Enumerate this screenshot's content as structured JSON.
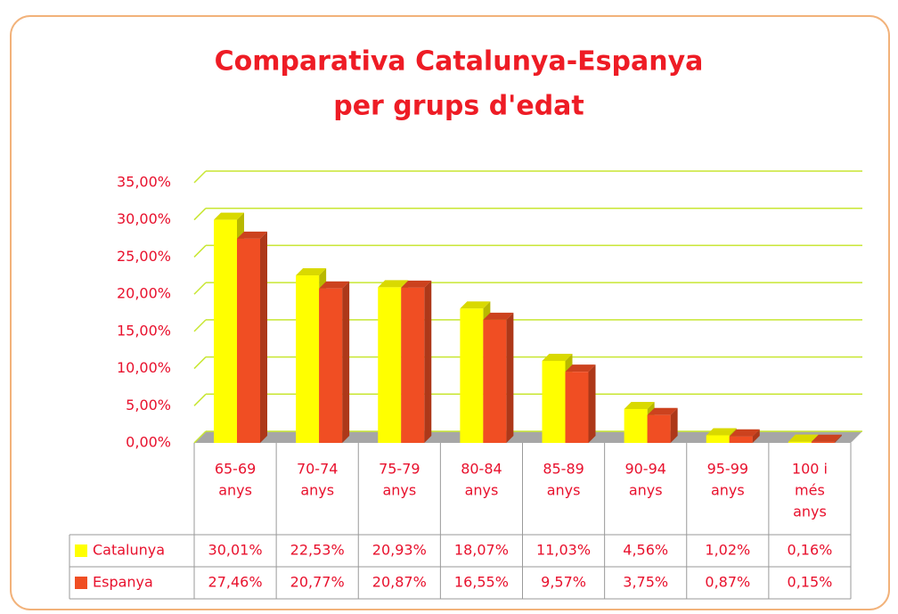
{
  "chart_data": {
    "type": "bar",
    "title": [
      "Comparativa Catalunya-Espanya",
      "per grups d'edat"
    ],
    "categories": [
      [
        "65-69",
        "anys"
      ],
      [
        "70-74",
        "anys"
      ],
      [
        "75-79",
        "anys"
      ],
      [
        "80-84",
        "anys"
      ],
      [
        "85-89",
        "anys"
      ],
      [
        "90-94",
        "anys"
      ],
      [
        "95-99",
        "anys"
      ],
      [
        "100 i",
        "més",
        "anys"
      ]
    ],
    "series": [
      {
        "name": "Catalunya",
        "color": "#ffff00",
        "values": [
          30.01,
          22.53,
          20.93,
          18.07,
          11.03,
          4.56,
          1.02,
          0.16
        ],
        "value_labels": [
          "30,01%",
          "22,53%",
          "20,93%",
          "18,07%",
          "11,03%",
          "4,56%",
          "1,02%",
          "0,16%"
        ]
      },
      {
        "name": "Espanya",
        "color": "#f04e23",
        "values": [
          27.46,
          20.77,
          20.87,
          16.55,
          9.57,
          3.75,
          0.87,
          0.15
        ],
        "value_labels": [
          "27,46%",
          "20,77%",
          "20,87%",
          "16,55%",
          "9,57%",
          "3,75%",
          "0,87%",
          "0,15%"
        ]
      }
    ],
    "ylim": [
      0,
      35
    ],
    "yticks": [
      {
        "value": 0,
        "label": "0,00%"
      },
      {
        "value": 5,
        "label": "5,00%"
      },
      {
        "value": 10,
        "label": "10,00%"
      },
      {
        "value": 15,
        "label": "15,00%"
      },
      {
        "value": 20,
        "label": "20,00%"
      },
      {
        "value": 25,
        "label": "25,00%"
      },
      {
        "value": 30,
        "label": "30,00%"
      },
      {
        "value": 35,
        "label": "35,00%"
      }
    ],
    "grid": true
  }
}
